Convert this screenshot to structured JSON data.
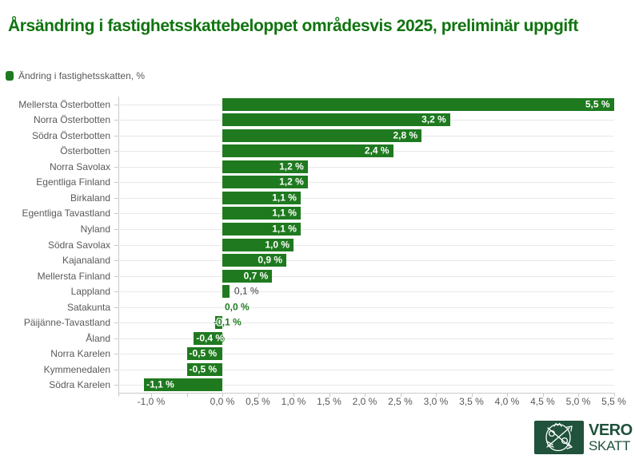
{
  "title": "Årsändring i fastighetsskattebeloppet områdesvis 2025, preliminär uppgift",
  "legend": {
    "label": "Ändring i fastighetsskatten, %"
  },
  "colors": {
    "bar_green": "#1F7A1F",
    "title_green": "#107410",
    "text_gray": "#58595B",
    "grid_line": "#E8E8E8",
    "axis_line": "#C9C9C9",
    "value_label_dark": "#3C3C3C",
    "logo_green": "#20523C"
  },
  "chart_data": {
    "type": "bar",
    "orientation": "horizontal",
    "title": "Årsändring i fastighetsskattebeloppet områdesvis 2025, preliminär uppgift",
    "series_name": "Ändring i fastighetsskatten, %",
    "categories": [
      "Mellersta Österbotten",
      "Norra Österbotten",
      "Södra Österbotten",
      "Österbotten",
      "Norra Savolax",
      "Egentliga Finland",
      "Birkaland",
      "Egentliga Tavastland",
      "Nyland",
      "Södra Savolax",
      "Kajanaland",
      "Mellersta Finland",
      "Lappland",
      "Satakunta",
      "Päijänne-Tavastland",
      "Åland",
      "Norra Karelen",
      "Kymmenedalen",
      "Södra Karelen"
    ],
    "values": [
      5.5,
      3.2,
      2.8,
      2.4,
      1.2,
      1.2,
      1.1,
      1.1,
      1.1,
      1.0,
      0.9,
      0.7,
      0.1,
      0.0,
      -0.1,
      -0.4,
      -0.5,
      -0.5,
      -1.1
    ],
    "value_labels": [
      "5,5 %",
      "3,2 %",
      "2,8 %",
      "2,4 %",
      "1,2 %",
      "1,2 %",
      "1,1 %",
      "1,1 %",
      "1,1 %",
      "1,0 %",
      "0,9 %",
      "0,7 %",
      "0,1 %",
      "0,0 %",
      "-0,1 %",
      "-0,4 %",
      "-0,5 %",
      "-0,5 %",
      "-1,1 %"
    ],
    "xlabel": "",
    "ylabel": "",
    "xlim": [
      -1.46,
      5.6
    ],
    "grid": true,
    "legend_position": "top-left",
    "x_ticks": [
      {
        "value": -1.0,
        "label": "-1,0 %"
      },
      {
        "value": -0.5,
        "label": ""
      },
      {
        "value": 0.0,
        "label": "0,0 %"
      },
      {
        "value": 0.5,
        "label": "0,5 %"
      },
      {
        "value": 1.0,
        "label": "1,0 %"
      },
      {
        "value": 1.5,
        "label": "1,5 %"
      },
      {
        "value": 2.0,
        "label": "2,0 %"
      },
      {
        "value": 2.5,
        "label": "2,5 %"
      },
      {
        "value": 3.0,
        "label": "3,0 %"
      },
      {
        "value": 3.5,
        "label": "3,5 %"
      },
      {
        "value": 4.0,
        "label": "4,0 %"
      },
      {
        "value": 4.5,
        "label": "4,5 %"
      },
      {
        "value": 5.0,
        "label": "5,0 %"
      },
      {
        "value": 5.5,
        "label": "5,5 %"
      }
    ]
  },
  "logo": {
    "line1": "VERO",
    "line2": "SKATT"
  }
}
